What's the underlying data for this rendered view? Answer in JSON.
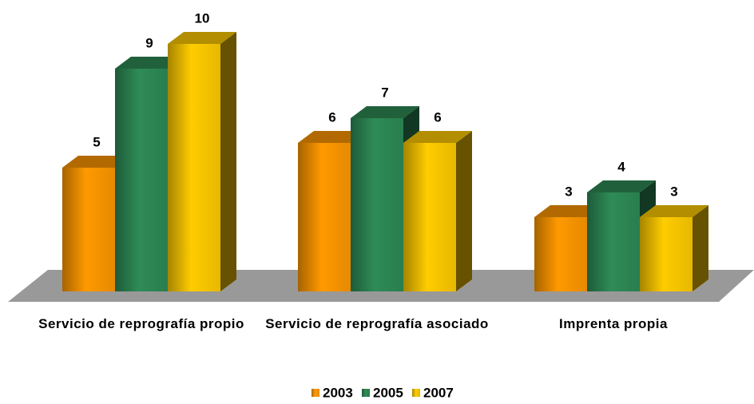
{
  "chart_data": {
    "type": "bar3d",
    "categories": [
      "Servicio de reprografía propio",
      "Servicio de reprografía asociado",
      "Imprenta propia"
    ],
    "series": [
      {
        "name": "2003",
        "color": "#ff9900",
        "values": [
          5,
          6,
          3
        ]
      },
      {
        "name": "2005",
        "color": "#2e8b57",
        "values": [
          9,
          7,
          4
        ]
      },
      {
        "name": "2007",
        "color": "#ffcc00",
        "values": [
          10,
          6,
          3
        ]
      }
    ],
    "legend": "bottom"
  }
}
